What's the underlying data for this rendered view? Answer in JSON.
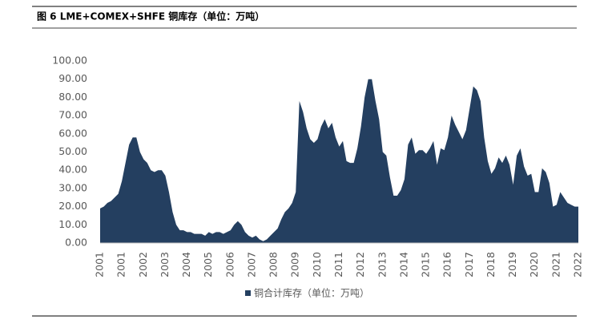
{
  "chart_data": {
    "type": "area",
    "title": "图 6 LME+COMEX+SHFE 铜库存（单位：万吨）",
    "categories": [
      "2001",
      null,
      null,
      null,
      null,
      null,
      "2001",
      null,
      null,
      null,
      null,
      null,
      "2002",
      null,
      null,
      null,
      null,
      null,
      "2003",
      null,
      null,
      null,
      null,
      null,
      "2004",
      null,
      null,
      null,
      null,
      null,
      "2005",
      null,
      null,
      null,
      null,
      null,
      "2006",
      null,
      null,
      null,
      null,
      null,
      "2007",
      null,
      null,
      null,
      null,
      null,
      "2008",
      null,
      null,
      null,
      null,
      null,
      "2009",
      null,
      null,
      null,
      null,
      null,
      "2010",
      null,
      null,
      null,
      null,
      null,
      "2011",
      null,
      null,
      null,
      null,
      null,
      "2012",
      null,
      null,
      null,
      null,
      null,
      "2013",
      null,
      null,
      null,
      null,
      null,
      "2014",
      null,
      null,
      null,
      null,
      null,
      "2015",
      null,
      null,
      null,
      null,
      null,
      "2016",
      null,
      null,
      null,
      null,
      null,
      "2017",
      null,
      null,
      null,
      null,
      null,
      "2018",
      null,
      null,
      null,
      null,
      null,
      "2019",
      null,
      null,
      null,
      null,
      null,
      "2020",
      null,
      null,
      null,
      null,
      null,
      "2021",
      null,
      null,
      null,
      null,
      null,
      "2022"
    ],
    "series": [
      {
        "name": "铜合计库存（单位：万吨）",
        "color": "#243f60",
        "values": [
          19,
          20,
          22,
          23,
          25,
          27,
          34,
          44,
          54,
          58,
          58,
          50,
          46,
          44,
          40,
          39,
          40,
          40,
          37,
          28,
          17,
          10,
          7,
          7,
          6,
          6,
          5,
          5,
          5,
          4,
          6,
          5,
          6,
          6,
          5,
          6,
          7,
          10,
          12,
          10,
          6,
          4,
          3,
          4,
          2,
          1,
          2,
          4,
          6,
          8,
          13,
          17,
          19,
          22,
          28,
          78,
          72,
          63,
          57,
          55,
          57,
          64,
          68,
          63,
          66,
          58,
          53,
          56,
          45,
          44,
          44,
          52,
          64,
          80,
          90,
          90,
          78,
          68,
          50,
          48,
          36,
          26,
          26,
          29,
          35,
          54,
          58,
          49,
          51,
          51,
          49,
          52,
          56,
          43,
          52,
          51,
          58,
          70,
          65,
          61,
          57,
          62,
          74,
          86,
          84,
          78,
          58,
          45,
          38,
          41,
          47,
          44,
          48,
          43,
          32,
          48,
          52,
          42,
          37,
          38,
          28,
          28,
          41,
          39,
          33,
          20,
          21,
          28,
          25,
          22,
          21,
          20,
          20
        ]
      }
    ],
    "ylim": [
      0,
      100
    ],
    "yticks": [
      {
        "value": 0,
        "label": "0.00"
      },
      {
        "value": 10,
        "label": "10.00"
      },
      {
        "value": 20,
        "label": "20.00"
      },
      {
        "value": 30,
        "label": "30.00"
      },
      {
        "value": 40,
        "label": "40.00"
      },
      {
        "value": 50,
        "label": "50.00"
      },
      {
        "value": 60,
        "label": "60.00"
      },
      {
        "value": 70,
        "label": "70.00"
      },
      {
        "value": 80,
        "label": "80.00"
      },
      {
        "value": 90,
        "label": "90.00"
      },
      {
        "value": 100,
        "label": "100.00"
      }
    ],
    "grid": false
  }
}
